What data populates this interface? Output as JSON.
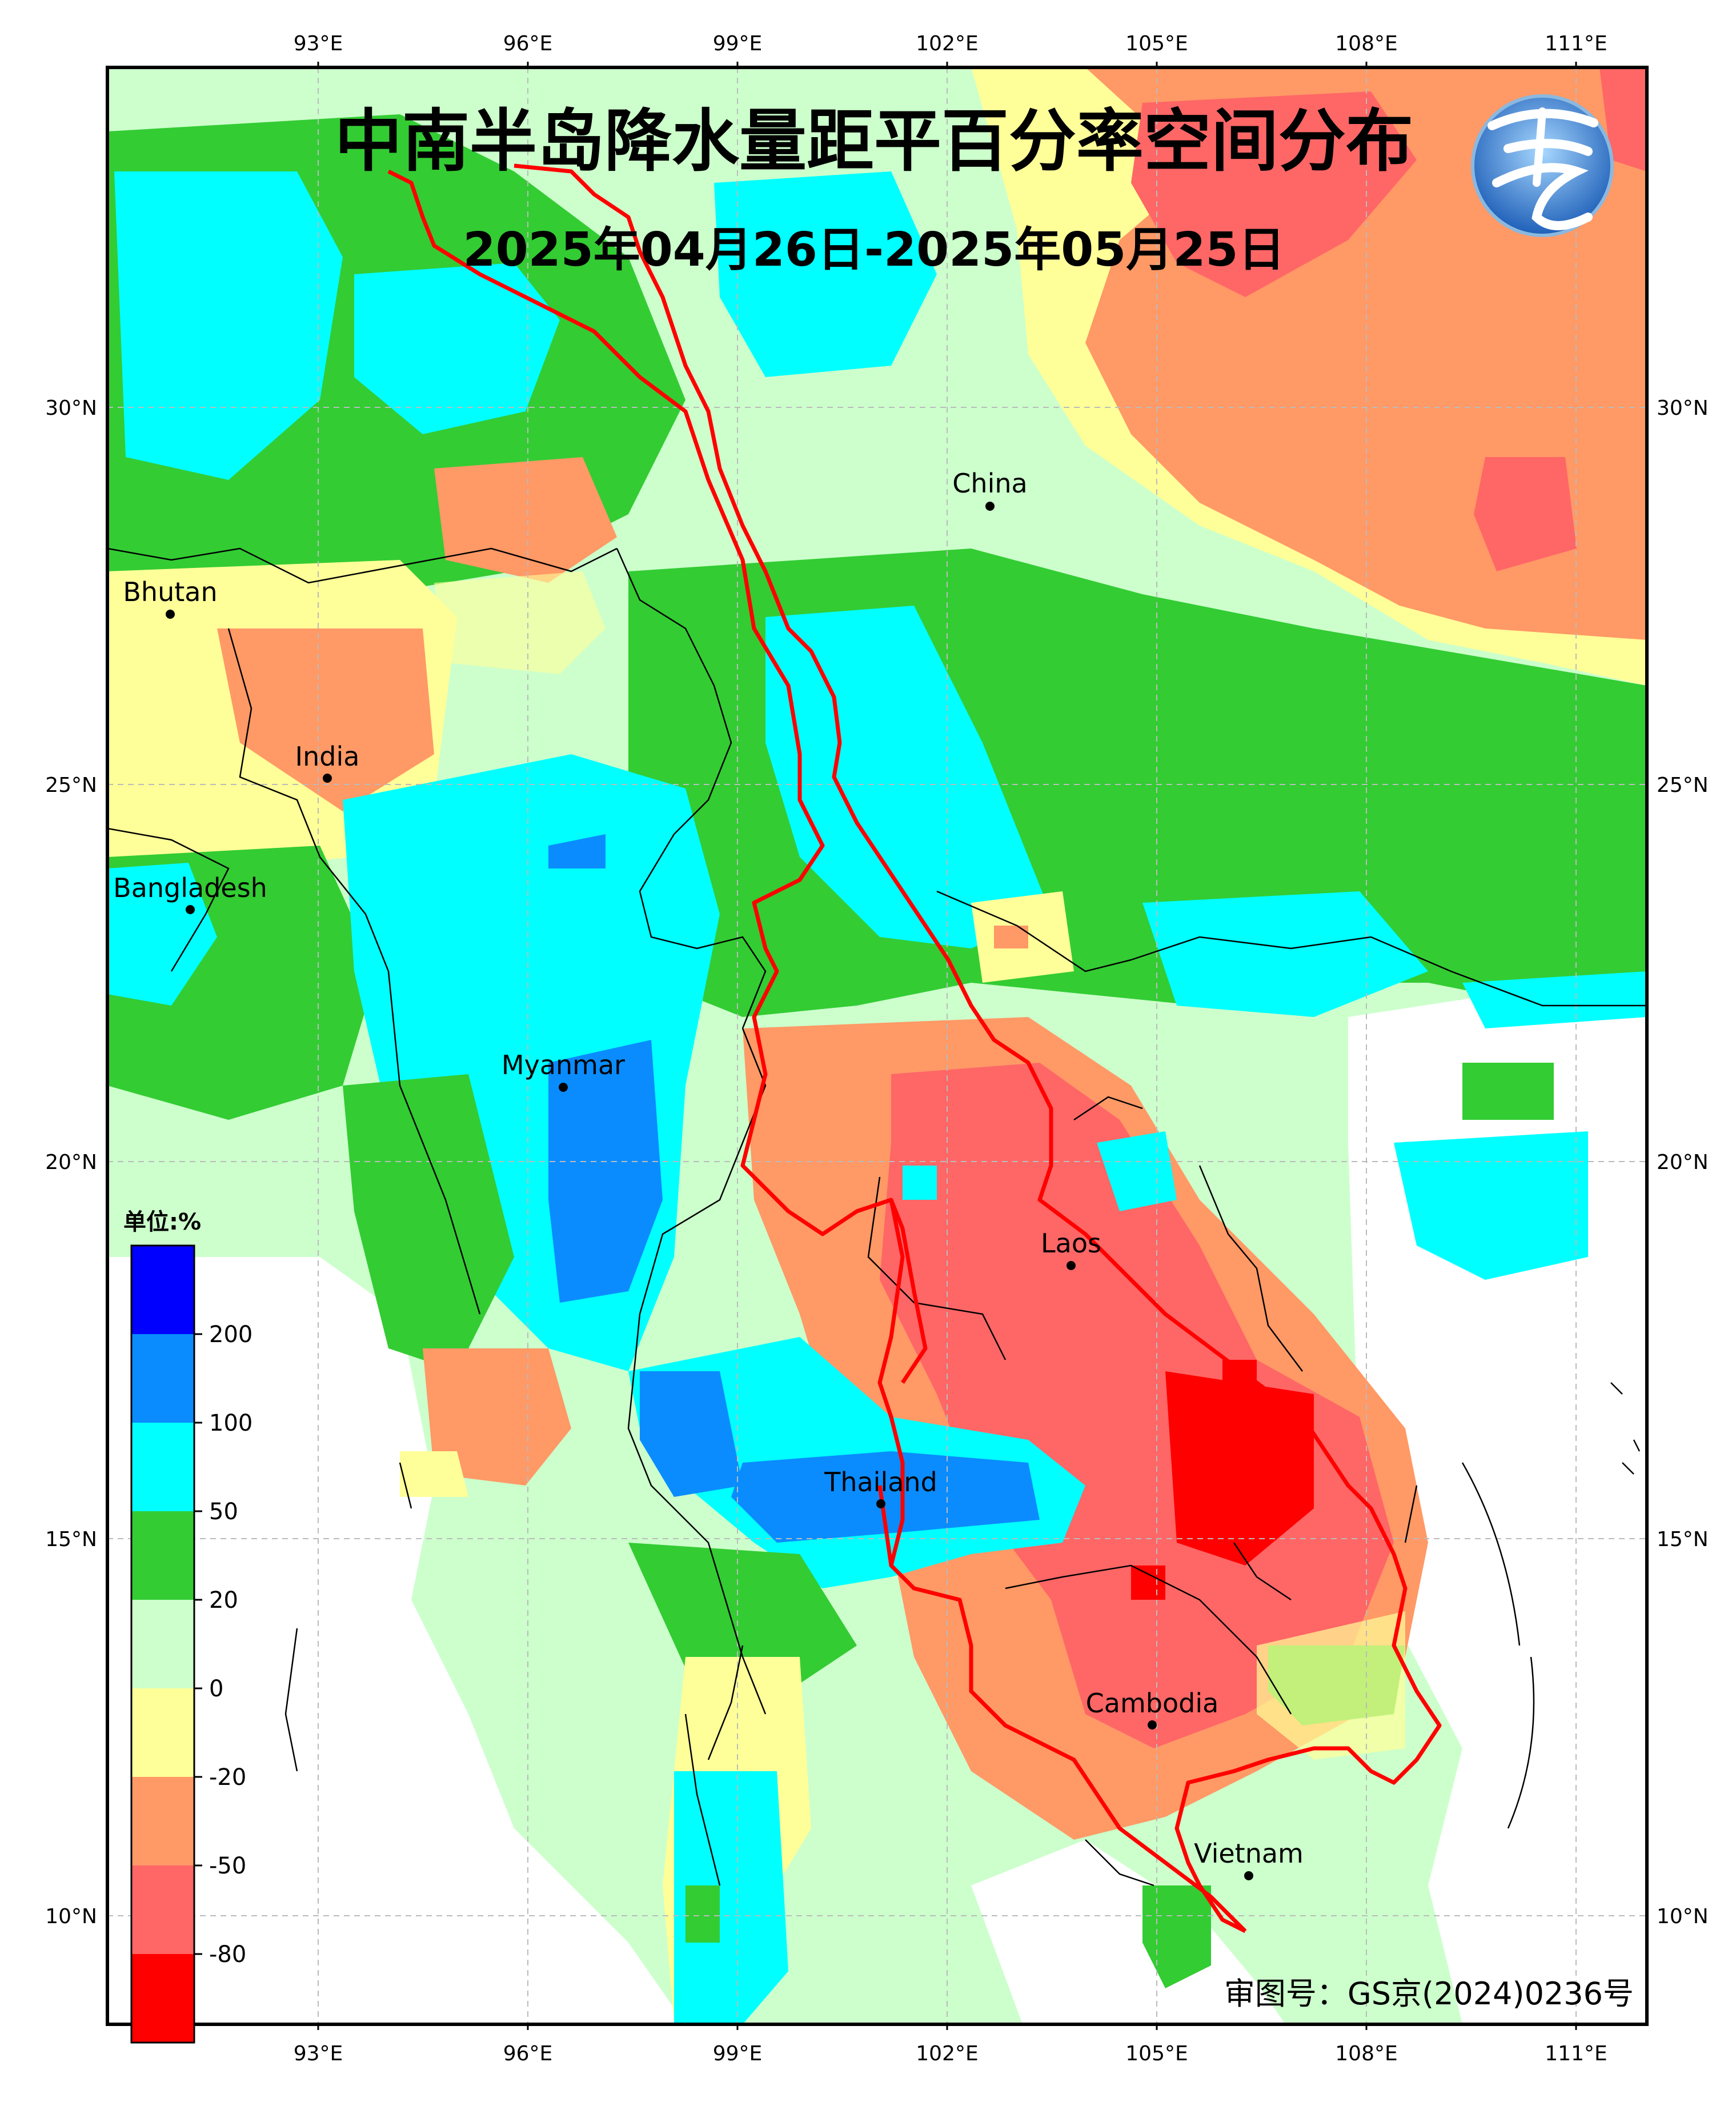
{
  "title": "中南半岛降水量距平百分率空间分布",
  "subtitle": "2025年04月26日-2025年05月25日",
  "approval_number": "审图号：GS京(2024)0236号",
  "lon_ticks": [
    "93°E",
    "96°E",
    "99°E",
    "102°E",
    "105°E",
    "108°E",
    "111°E"
  ],
  "lat_ticks": [
    "30°N",
    "25°N",
    "20°N",
    "15°N",
    "10°N"
  ],
  "legend": {
    "unit_label": "单位:%",
    "tick_labels": [
      "200",
      "100",
      "50",
      "20",
      "0",
      "-20",
      "-50",
      "-80"
    ],
    "colors": [
      "#0000ff",
      "#0a8cff",
      "#00ffff",
      "#33cc33",
      "#ccffcc",
      "#ffff99",
      "#ff9966",
      "#ff6666",
      "#ff0000"
    ]
  },
  "places": [
    {
      "name": "China"
    },
    {
      "name": "Bhutan"
    },
    {
      "name": "India"
    },
    {
      "name": "Bangladesh"
    },
    {
      "name": "Myanmar"
    },
    {
      "name": "Laos"
    },
    {
      "name": "Thailand"
    },
    {
      "name": "Cambodia"
    },
    {
      "name": "Vietnam"
    }
  ],
  "logo_icon": "meteorology-logo-icon"
}
